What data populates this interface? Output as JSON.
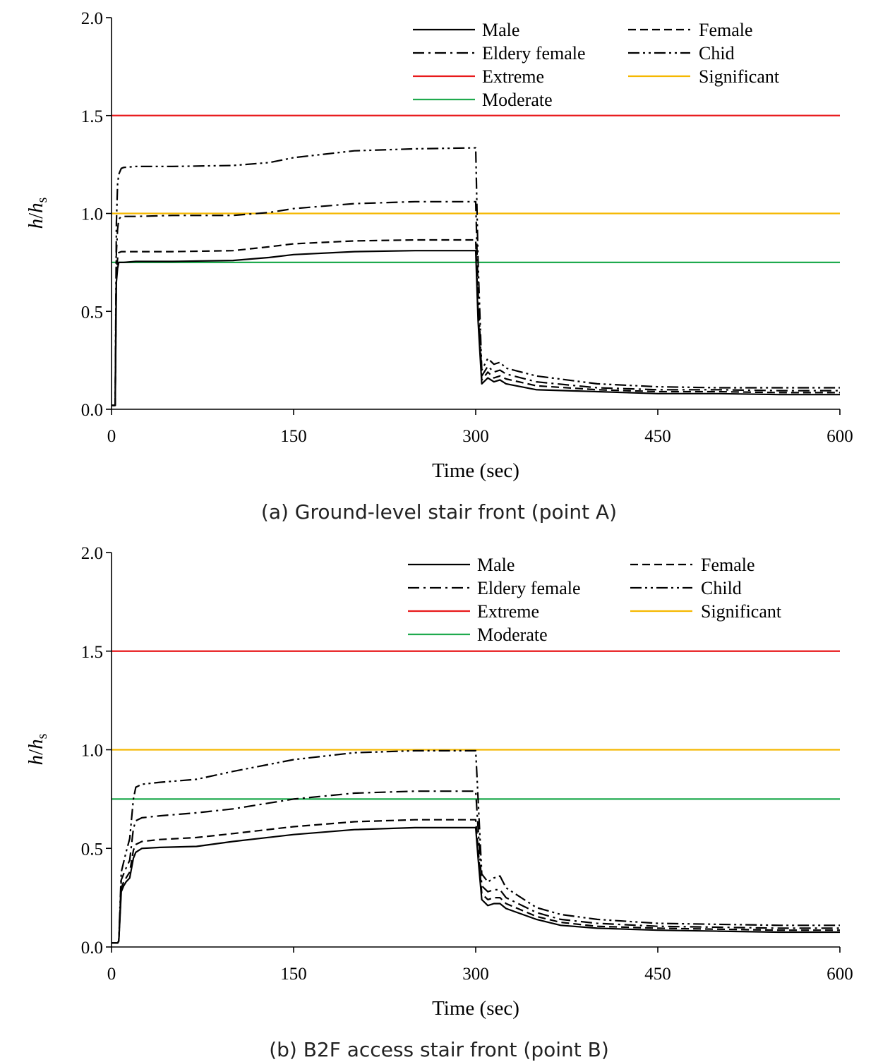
{
  "figure": {
    "captions": [
      "(a) Ground-level stair front (point A)",
      "(b) B2F access stair front (point B)"
    ]
  },
  "chart_data": [
    {
      "type": "line",
      "xlabel": "Time (sec)",
      "ylabel": {
        "h1": "h",
        "slash": "/",
        "h2": "h",
        "sub": "s"
      },
      "xlim": [
        0,
        600
      ],
      "ylim": [
        0,
        2.0
      ],
      "xticks": [
        0,
        150,
        300,
        450,
        600
      ],
      "yticks": [
        "0.0",
        "0.5",
        "1.0",
        "1.5",
        "2.0"
      ],
      "grid": false,
      "legend_position": "top-right",
      "legend": [
        {
          "label": "Male",
          "style": "solid",
          "color": "#000000"
        },
        {
          "label": "Female",
          "style": "dashed",
          "color": "#000000"
        },
        {
          "label": "Eldery female",
          "style": "dashdot",
          "color": "#000000"
        },
        {
          "label": "Chid",
          "style": "dashdotdot",
          "color": "#000000"
        },
        {
          "label": "Extreme",
          "style": "solid",
          "color": "#e8191b"
        },
        {
          "label": "Significant",
          "style": "solid",
          "color": "#f5b800"
        },
        {
          "label": "Moderate",
          "style": "solid",
          "color": "#1faa4e"
        }
      ],
      "thresholds": [
        {
          "name": "Extreme",
          "value": 1.5,
          "color": "#e8191b"
        },
        {
          "name": "Significant",
          "value": 1.0,
          "color": "#f5b800"
        },
        {
          "name": "Moderate",
          "value": 0.75,
          "color": "#1faa4e"
        }
      ],
      "series": [
        {
          "name": "Male",
          "style": "solid",
          "x": [
            0,
            3,
            4,
            5,
            6,
            8,
            10,
            20,
            50,
            100,
            130,
            150,
            200,
            250,
            300,
            302,
            305,
            310,
            315,
            320,
            325,
            350,
            400,
            450,
            500,
            550,
            600
          ],
          "y": [
            0.02,
            0.02,
            0.65,
            0.72,
            0.75,
            0.75,
            0.75,
            0.755,
            0.755,
            0.76,
            0.775,
            0.79,
            0.805,
            0.81,
            0.81,
            0.45,
            0.13,
            0.16,
            0.14,
            0.15,
            0.13,
            0.1,
            0.09,
            0.08,
            0.08,
            0.075,
            0.075
          ]
        },
        {
          "name": "Female",
          "style": "dashed",
          "x": [
            0,
            3,
            4,
            5,
            6,
            8,
            10,
            20,
            50,
            100,
            130,
            150,
            200,
            250,
            300,
            302,
            305,
            310,
            315,
            320,
            325,
            350,
            400,
            450,
            500,
            550,
            600
          ],
          "y": [
            0.02,
            0.02,
            0.7,
            0.77,
            0.8,
            0.805,
            0.805,
            0.805,
            0.805,
            0.81,
            0.83,
            0.845,
            0.86,
            0.865,
            0.865,
            0.5,
            0.15,
            0.19,
            0.16,
            0.17,
            0.155,
            0.12,
            0.1,
            0.09,
            0.09,
            0.085,
            0.085
          ]
        },
        {
          "name": "Eldery female",
          "style": "dashdot",
          "x": [
            0,
            3,
            4,
            5,
            6,
            8,
            10,
            20,
            50,
            100,
            130,
            150,
            200,
            250,
            300,
            302,
            305,
            310,
            315,
            320,
            325,
            350,
            400,
            450,
            500,
            550,
            600
          ],
          "y": [
            0.02,
            0.02,
            0.8,
            0.92,
            0.97,
            0.985,
            0.985,
            0.985,
            0.99,
            0.99,
            1.005,
            1.025,
            1.05,
            1.06,
            1.06,
            0.6,
            0.17,
            0.22,
            0.19,
            0.2,
            0.18,
            0.14,
            0.11,
            0.1,
            0.1,
            0.095,
            0.095
          ]
        },
        {
          "name": "Chid",
          "style": "dashdotdot",
          "x": [
            0,
            3,
            4,
            5,
            6,
            8,
            10,
            20,
            50,
            100,
            130,
            150,
            200,
            250,
            300,
            302,
            305,
            310,
            315,
            320,
            325,
            350,
            400,
            450,
            500,
            550,
            600
          ],
          "y": [
            0.02,
            0.02,
            0.95,
            1.15,
            1.2,
            1.23,
            1.235,
            1.24,
            1.24,
            1.245,
            1.26,
            1.285,
            1.32,
            1.33,
            1.335,
            0.75,
            0.2,
            0.26,
            0.23,
            0.24,
            0.21,
            0.17,
            0.13,
            0.115,
            0.11,
            0.11,
            0.11
          ]
        }
      ]
    },
    {
      "type": "line",
      "xlabel": "Time (sec)",
      "ylabel": {
        "h1": "h",
        "slash": "/",
        "h2": "h",
        "sub": "s"
      },
      "xlim": [
        0,
        600
      ],
      "ylim": [
        0,
        2.0
      ],
      "xticks": [
        0,
        150,
        300,
        450,
        600
      ],
      "yticks": [
        "0.0",
        "0.5",
        "1.0",
        "1.5",
        "2.0"
      ],
      "grid": false,
      "legend_position": "top-right",
      "legend": [
        {
          "label": "Male",
          "style": "solid",
          "color": "#000000"
        },
        {
          "label": "Female",
          "style": "dashed",
          "color": "#000000"
        },
        {
          "label": "Eldery female",
          "style": "dashdot",
          "color": "#000000"
        },
        {
          "label": "Child",
          "style": "dashdotdot",
          "color": "#000000"
        },
        {
          "label": "Extreme",
          "style": "solid",
          "color": "#e8191b"
        },
        {
          "label": "Significant",
          "style": "solid",
          "color": "#f5b800"
        },
        {
          "label": "Moderate",
          "style": "solid",
          "color": "#1faa4e"
        }
      ],
      "thresholds": [
        {
          "name": "Extreme",
          "value": 1.5,
          "color": "#e8191b"
        },
        {
          "name": "Significant",
          "value": 1.0,
          "color": "#f5b800"
        },
        {
          "name": "Moderate",
          "value": 0.75,
          "color": "#1faa4e"
        }
      ],
      "series": [
        {
          "name": "Male",
          "style": "solid",
          "x": [
            0,
            5,
            6,
            8,
            10,
            12,
            15,
            18,
            20,
            25,
            40,
            70,
            100,
            150,
            200,
            250,
            300,
            302,
            305,
            310,
            315,
            320,
            325,
            350,
            370,
            400,
            450,
            500,
            550,
            600
          ],
          "y": [
            0.02,
            0.02,
            0.03,
            0.28,
            0.31,
            0.33,
            0.35,
            0.45,
            0.48,
            0.5,
            0.505,
            0.51,
            0.535,
            0.57,
            0.595,
            0.605,
            0.605,
            0.45,
            0.24,
            0.21,
            0.22,
            0.22,
            0.195,
            0.14,
            0.11,
            0.095,
            0.085,
            0.08,
            0.075,
            0.075
          ]
        },
        {
          "name": "Female",
          "style": "dashed",
          "x": [
            0,
            5,
            6,
            8,
            10,
            12,
            15,
            18,
            20,
            25,
            40,
            70,
            100,
            150,
            200,
            250,
            300,
            302,
            305,
            310,
            315,
            320,
            325,
            350,
            370,
            400,
            450,
            500,
            550,
            600
          ],
          "y": [
            0.02,
            0.02,
            0.03,
            0.3,
            0.33,
            0.35,
            0.38,
            0.49,
            0.52,
            0.535,
            0.545,
            0.555,
            0.575,
            0.61,
            0.635,
            0.645,
            0.645,
            0.5,
            0.27,
            0.24,
            0.25,
            0.25,
            0.22,
            0.155,
            0.125,
            0.105,
            0.095,
            0.09,
            0.085,
            0.085
          ]
        },
        {
          "name": "Eldery female",
          "style": "dashdot",
          "x": [
            0,
            5,
            6,
            8,
            10,
            12,
            15,
            18,
            20,
            25,
            40,
            70,
            100,
            150,
            200,
            250,
            300,
            302,
            305,
            310,
            315,
            320,
            325,
            350,
            370,
            400,
            450,
            500,
            550,
            600
          ],
          "y": [
            0.02,
            0.02,
            0.03,
            0.34,
            0.37,
            0.4,
            0.44,
            0.6,
            0.64,
            0.655,
            0.665,
            0.68,
            0.7,
            0.75,
            0.78,
            0.79,
            0.79,
            0.6,
            0.31,
            0.28,
            0.29,
            0.29,
            0.25,
            0.175,
            0.14,
            0.12,
            0.105,
            0.1,
            0.095,
            0.095
          ]
        },
        {
          "name": "Child",
          "style": "dashdotdot",
          "x": [
            0,
            5,
            6,
            8,
            10,
            12,
            15,
            18,
            20,
            25,
            40,
            70,
            100,
            150,
            200,
            250,
            300,
            302,
            305,
            310,
            315,
            320,
            325,
            350,
            370,
            400,
            450,
            500,
            550,
            600
          ],
          "y": [
            0.02,
            0.02,
            0.03,
            0.38,
            0.43,
            0.48,
            0.55,
            0.75,
            0.81,
            0.825,
            0.835,
            0.85,
            0.89,
            0.95,
            0.985,
            0.995,
            0.995,
            0.75,
            0.37,
            0.33,
            0.35,
            0.36,
            0.3,
            0.2,
            0.165,
            0.14,
            0.12,
            0.115,
            0.11,
            0.11
          ]
        }
      ]
    }
  ]
}
